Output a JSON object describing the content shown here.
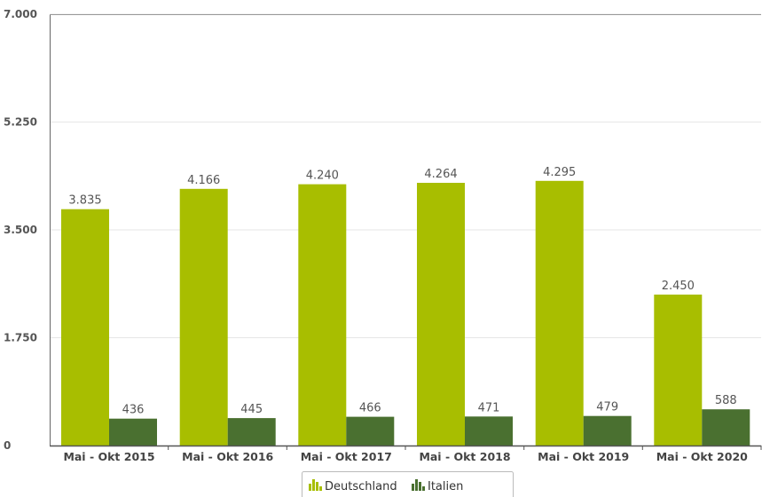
{
  "chart_data": {
    "type": "bar",
    "categories": [
      "Mai - Okt 2015",
      "Mai - Okt 2016",
      "Mai - Okt 2017",
      "Mai - Okt 2018",
      "Mai - Okt 2019",
      "Mai - Okt 2020"
    ],
    "series": [
      {
        "name": "Deutschland",
        "color": "#a8be00",
        "values": [
          3835,
          4166,
          4240,
          4264,
          4295,
          2450
        ],
        "labels": [
          "3.835",
          "4.166",
          "4.240",
          "4.264",
          "4.295",
          "2.450"
        ]
      },
      {
        "name": "Italien",
        "color": "#4a7030",
        "values": [
          436,
          445,
          466,
          471,
          479,
          588
        ],
        "labels": [
          "436",
          "445",
          "466",
          "471",
          "479",
          "588"
        ]
      }
    ],
    "yticks": [
      0,
      1750,
      3500,
      5250,
      7000
    ],
    "ytick_labels": [
      "0",
      "1.750",
      "3.500",
      "5.250",
      "7.000"
    ],
    "ylim": [
      0,
      7000
    ],
    "grid": true,
    "legend_position": "bottom-center",
    "title": "",
    "xlabel": "",
    "ylabel": ""
  },
  "legend": {
    "icons": [
      "bar-chart-icon",
      "bar-chart-icon"
    ]
  }
}
